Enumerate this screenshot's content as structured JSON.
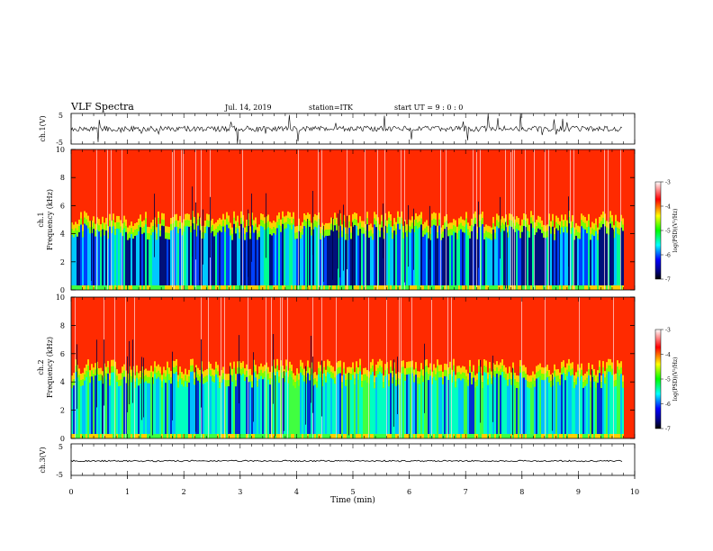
{
  "header": {
    "title": "VLF Spectra",
    "date": "Jul. 14, 2019",
    "station": "station=ITK",
    "start": "start UT =  9 : 0 : 0"
  },
  "chart_data": [
    {
      "type": "line",
      "panel": "ch1-waveform",
      "ylabel": "ch.1(V)",
      "ylim": [
        -5,
        5
      ],
      "yticks": [
        5,
        -5
      ],
      "xlim": [
        0,
        10
      ],
      "description_values": {
        "baseline": 0,
        "spike_max": 5
      }
    },
    {
      "type": "heatmap",
      "panel": "ch1-spectrogram",
      "ylabel_line1": "ch.1",
      "ylabel_line2": "Frequency (kHz)",
      "ylim": [
        0,
        10
      ],
      "yticks": [
        0,
        2,
        4,
        6,
        8,
        10
      ],
      "xlim": [
        0,
        10
      ],
      "colorbar": {
        "label": "log(PSD)(V²/Hz)",
        "ticks": [
          -3,
          -4,
          -5,
          -6,
          -7
        ],
        "range": [
          -7,
          -3
        ]
      }
    },
    {
      "type": "heatmap",
      "panel": "ch2-spectrogram",
      "ylabel_line1": "ch.2",
      "ylabel_line2": "Frequency (kHz)",
      "ylim": [
        0,
        10
      ],
      "yticks": [
        0,
        2,
        4,
        6,
        8,
        10
      ],
      "xlim": [
        0,
        10
      ],
      "colorbar": {
        "label": "log(PSD)(V²/Hz)",
        "ticks": [
          -3,
          -4,
          -5,
          -6,
          -7
        ],
        "range": [
          -7,
          -3
        ]
      }
    },
    {
      "type": "line",
      "panel": "ch3-waveform",
      "ylabel": "ch.3(V)",
      "ylim": [
        -5,
        5
      ],
      "yticks": [
        5,
        -5
      ],
      "xlim": [
        0,
        10
      ],
      "xlabel": "Time (min)",
      "xticks": [
        0,
        1,
        2,
        3,
        4,
        5,
        6,
        7,
        8,
        9,
        10
      ],
      "description_values": {
        "baseline": -1.5
      }
    }
  ]
}
